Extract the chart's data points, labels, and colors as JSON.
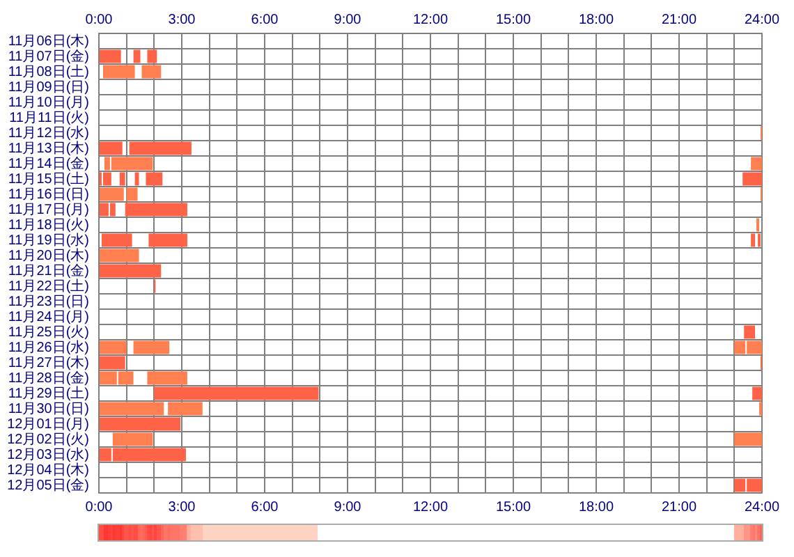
{
  "chart_data": {
    "type": "bar",
    "orientation": "horizontal",
    "grid": true,
    "categories": [
      "11月06日(木)",
      "11月07日(金)",
      "11月08日(土)",
      "11月09日(日)",
      "11月10日(月)",
      "11月11日(火)",
      "11月12日(水)",
      "11月13日(木)",
      "11月14日(金)",
      "11月15日(土)",
      "11月16日(日)",
      "11月17日(月)",
      "11月18日(火)",
      "11月19日(水)",
      "11月20日(木)",
      "11月21日(金)",
      "11月22日(土)",
      "11月23日(日)",
      "11月24日(月)",
      "11月25日(火)",
      "11月26日(水)",
      "11月27日(木)",
      "11月28日(金)",
      "11月29日(土)",
      "11月30日(日)",
      "12月01日(月)",
      "12月02日(火)",
      "12月03日(水)",
      "12月04日(木)",
      "12月05日(金)"
    ],
    "xlim": [
      0,
      24
    ],
    "xticks": [
      {
        "value": 0,
        "label": "0:00"
      },
      {
        "value": 1,
        "label": null
      },
      {
        "value": 2,
        "label": null
      },
      {
        "value": 3,
        "label": "3:00"
      },
      {
        "value": 4,
        "label": null
      },
      {
        "value": 5,
        "label": null
      },
      {
        "value": 6,
        "label": "6:00"
      },
      {
        "value": 7,
        "label": null
      },
      {
        "value": 8,
        "label": null
      },
      {
        "value": 9,
        "label": "9:00"
      },
      {
        "value": 10,
        "label": null
      },
      {
        "value": 11,
        "label": null
      },
      {
        "value": 12,
        "label": "12:00"
      },
      {
        "value": 13,
        "label": null
      },
      {
        "value": 14,
        "label": null
      },
      {
        "value": 15,
        "label": "15:00"
      },
      {
        "value": 16,
        "label": null
      },
      {
        "value": 17,
        "label": null
      },
      {
        "value": 18,
        "label": "18:00"
      },
      {
        "value": 19,
        "label": null
      },
      {
        "value": 20,
        "label": null
      },
      {
        "value": 21,
        "label": "21:00"
      },
      {
        "value": 22,
        "label": null
      },
      {
        "value": 23,
        "label": null
      },
      {
        "value": 24,
        "label": "24:00"
      }
    ],
    "x2lim": [
      0,
      24
    ],
    "x2ticks": [
      {
        "value": 0,
        "label": "0:00"
      },
      {
        "value": 1,
        "label": null
      },
      {
        "value": 2,
        "label": null
      },
      {
        "value": 3,
        "label": "3:00"
      },
      {
        "value": 4,
        "label": null
      },
      {
        "value": 5,
        "label": null
      },
      {
        "value": 6,
        "label": "6:00"
      },
      {
        "value": 7,
        "label": null
      },
      {
        "value": 8,
        "label": null
      },
      {
        "value": 9,
        "label": "9:00"
      },
      {
        "value": 10,
        "label": null
      },
      {
        "value": 11,
        "label": null
      },
      {
        "value": 12,
        "label": "12:00"
      },
      {
        "value": 13,
        "label": null
      },
      {
        "value": 14,
        "label": null
      },
      {
        "value": 15,
        "label": "15:00"
      },
      {
        "value": 16,
        "label": null
      },
      {
        "value": 17,
        "label": null
      },
      {
        "value": 18,
        "label": "18:00"
      },
      {
        "value": 19,
        "label": null
      },
      {
        "value": 20,
        "label": null
      },
      {
        "value": 21,
        "label": "21:00"
      },
      {
        "value": 22,
        "label": null
      },
      {
        "value": 23,
        "label": null
      },
      {
        "value": 24,
        "label": "24:00"
      }
    ],
    "series": [
      {
        "base": [
          null,
          0,
          0.15,
          null,
          null,
          null,
          23.95,
          0,
          0.2,
          0,
          0,
          0,
          23.8,
          0.1,
          0,
          0,
          2,
          null,
          null,
          23.35,
          0,
          0,
          0,
          2,
          0,
          0,
          0.5,
          0,
          null,
          23
        ],
        "values": [
          null,
          0.8,
          1.15,
          null,
          null,
          null,
          0.05,
          0.85,
          0.2,
          0.1,
          0.9,
          0.35,
          0.1,
          1.1,
          1.45,
          2.25,
          0.05,
          null,
          null,
          0.4,
          1,
          0.95,
          0.65,
          5.95,
          2.35,
          2.95,
          1.45,
          0.45,
          null,
          0.4
        ],
        "colors": [
          null,
          "#ff6347",
          "#ff7f50",
          null,
          null,
          null,
          "#ff7f50",
          "#ff6347",
          "#ff7f50",
          "#ff6347",
          "#ff7f50",
          "#ff6347",
          "#ff7f50",
          "#ff6347",
          "#ff7f50",
          "#ff6347",
          "#ff6347",
          null,
          null,
          "#ff6347",
          "#ff7f50",
          "#ff6347",
          "#ff7f50",
          "#ff6347",
          "#ff7f50",
          "#ff6347",
          "#ff7f50",
          "#ff6347",
          null,
          "#ff6347"
        ]
      },
      {
        "base": [
          null,
          1.25,
          1.55,
          null,
          null,
          null,
          null,
          1.1,
          0.45,
          0.15,
          1,
          0.4,
          null,
          1.8,
          null,
          null,
          null,
          null,
          null,
          null,
          1.25,
          23.95,
          0.7,
          23.65,
          2.5,
          null,
          23,
          0.5,
          null,
          23.45
        ],
        "values": [
          null,
          0.25,
          0.7,
          null,
          null,
          null,
          null,
          2.25,
          1.5,
          0.3,
          0.4,
          0.2,
          null,
          1.4,
          null,
          null,
          null,
          null,
          null,
          null,
          1.3,
          0.05,
          0.55,
          0.35,
          1.25,
          null,
          1,
          2.65,
          null,
          0.55
        ],
        "colors": [
          null,
          "#ff6347",
          "#ff7f50",
          null,
          null,
          null,
          null,
          "#ff6347",
          "#ff7f50",
          "#ff6347",
          "#ff7f50",
          "#ff6347",
          null,
          "#ff6347",
          null,
          null,
          null,
          null,
          null,
          null,
          "#ff7f50",
          "#ff6347",
          "#ff7f50",
          "#ff6347",
          "#ff7f50",
          null,
          "#ff7f50",
          "#ff6347",
          null,
          "#ff6347"
        ]
      },
      {
        "base": [
          null,
          1.75,
          null,
          null,
          null,
          null,
          null,
          null,
          23.6,
          0.75,
          23.95,
          0.95,
          null,
          23.6,
          null,
          null,
          null,
          null,
          null,
          null,
          23,
          null,
          1.75,
          null,
          23.9,
          null,
          null,
          null,
          null,
          null
        ],
        "values": [
          null,
          0.35,
          null,
          null,
          null,
          null,
          null,
          null,
          0.4,
          0.2,
          0.05,
          2.25,
          null,
          0.15,
          null,
          null,
          null,
          null,
          null,
          null,
          0.4,
          null,
          1.45,
          null,
          0.1,
          null,
          null,
          null,
          null,
          null
        ],
        "colors": [
          null,
          "#ff6347",
          null,
          null,
          null,
          null,
          null,
          null,
          "#ff7f50",
          "#ff6347",
          "#ff7f50",
          "#ff6347",
          null,
          "#ff6347",
          null,
          null,
          null,
          null,
          null,
          null,
          "#ff7f50",
          null,
          "#ff7f50",
          null,
          "#ff7f50",
          null,
          null,
          null,
          null,
          null
        ]
      },
      {
        "base": [
          null,
          null,
          null,
          null,
          null,
          null,
          null,
          null,
          null,
          1.3,
          null,
          null,
          null,
          23.85,
          null,
          null,
          null,
          null,
          null,
          null,
          23.45,
          null,
          null,
          null,
          null,
          null,
          null,
          null,
          null,
          null
        ],
        "values": [
          null,
          null,
          null,
          null,
          null,
          null,
          null,
          null,
          null,
          0.15,
          null,
          null,
          null,
          0.1,
          null,
          null,
          null,
          null,
          null,
          null,
          0.55,
          null,
          null,
          null,
          null,
          null,
          null,
          null,
          null,
          null
        ],
        "colors": [
          null,
          null,
          null,
          null,
          null,
          null,
          null,
          null,
          null,
          "#ff6347",
          null,
          null,
          null,
          "#ff6347",
          null,
          null,
          null,
          null,
          null,
          null,
          "#ff7f50",
          null,
          null,
          null,
          null,
          null,
          null,
          null,
          null,
          null
        ]
      },
      {
        "base": [
          null,
          null,
          null,
          null,
          null,
          null,
          null,
          null,
          null,
          1.7,
          null,
          null,
          null,
          null,
          null,
          null,
          null,
          null,
          null,
          null,
          null,
          null,
          null,
          null,
          null,
          null,
          null,
          null,
          null,
          null
        ],
        "values": [
          null,
          null,
          null,
          null,
          null,
          null,
          null,
          null,
          null,
          0.6,
          null,
          null,
          null,
          null,
          null,
          null,
          null,
          null,
          null,
          null,
          null,
          null,
          null,
          null,
          null,
          null,
          null,
          null,
          null,
          null
        ],
        "colors": [
          null,
          null,
          null,
          null,
          null,
          null,
          null,
          null,
          null,
          "#ff6347",
          null,
          null,
          null,
          null,
          null,
          null,
          null,
          null,
          null,
          null,
          null,
          null,
          null,
          null,
          null,
          null,
          null,
          null,
          null,
          null
        ]
      },
      {
        "base": [
          null,
          null,
          null,
          null,
          null,
          null,
          null,
          null,
          null,
          23.3,
          null,
          null,
          null,
          null,
          null,
          null,
          null,
          null,
          null,
          null,
          null,
          null,
          null,
          null,
          null,
          null,
          null,
          null,
          null,
          null
        ],
        "values": [
          null,
          null,
          null,
          null,
          null,
          null,
          null,
          null,
          null,
          0.7,
          null,
          null,
          null,
          null,
          null,
          null,
          null,
          null,
          null,
          null,
          null,
          null,
          null,
          null,
          null,
          null,
          null,
          null,
          null,
          null
        ],
        "colors": [
          null,
          null,
          null,
          null,
          null,
          null,
          null,
          null,
          null,
          "#ff6347",
          null,
          null,
          null,
          null,
          null,
          null,
          null,
          null,
          null,
          null,
          null,
          null,
          null,
          null,
          null,
          null,
          null,
          null,
          null,
          null
        ]
      }
    ]
  }
}
